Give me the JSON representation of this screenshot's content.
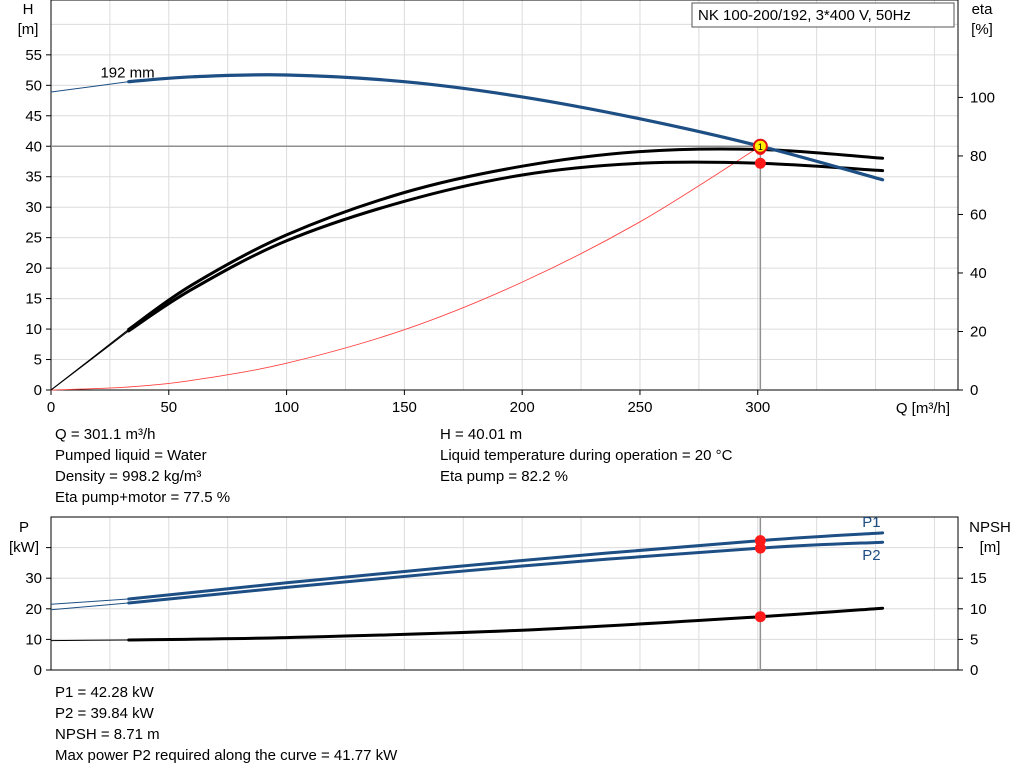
{
  "chart_data": [
    {
      "type": "line",
      "title": "NK 100-200/192, 3*400 V, 50Hz",
      "xlabel": "Q [m³/h]",
      "ylabel_left": "H",
      "ylabel_left_unit": "[m]",
      "ylabel_right": "eta",
      "ylabel_right_unit": "[%]",
      "xlim": [
        0,
        385
      ],
      "ylim": [
        0,
        64
      ],
      "ylim_right": [
        0,
        133.3
      ],
      "x_ticks": [
        "0",
        "50",
        "100",
        "150",
        "200",
        "250",
        "300"
      ],
      "y_ticks": [
        "0",
        "5",
        "10",
        "15",
        "20",
        "25",
        "30",
        "35",
        "40",
        "45",
        "50",
        "55"
      ],
      "y_right_ticks": [
        "0",
        "20",
        "40",
        "60",
        "80",
        "100"
      ],
      "curve_label": "192 mm",
      "grid": true,
      "series": [
        {
          "name": "H",
          "color": "#1d4f85",
          "x": [
            0,
            33,
            60,
            100,
            150,
            200,
            250,
            301.1,
            353
          ],
          "y": [
            48.9,
            50.6,
            51.4,
            51.7,
            50.6,
            48.1,
            44.5,
            40.01,
            34.5
          ]
        },
        {
          "name": "Eta pump",
          "color": "#000000",
          "axis": "right",
          "x": [
            0,
            33,
            60,
            100,
            150,
            200,
            250,
            301.1,
            353
          ],
          "y": [
            0,
            20.7,
            36.0,
            53.0,
            67.5,
            76.5,
            81.5,
            82.2,
            79.2
          ]
        },
        {
          "name": "Eta pump+motor",
          "color": "#000000",
          "axis": "right",
          "x": [
            0,
            33,
            60,
            100,
            150,
            200,
            250,
            301.1,
            353
          ],
          "y": [
            0,
            20.2,
            34.5,
            51.0,
            64.5,
            73.5,
            77.5,
            77.5,
            75.0
          ]
        },
        {
          "name": "System curve",
          "color": "#ff4444",
          "x": [
            0,
            33,
            60,
            100,
            150,
            200,
            250,
            301.1
          ],
          "y": [
            0,
            0.5,
            1.6,
            4.4,
            9.9,
            17.7,
            27.6,
            40.01
          ]
        }
      ],
      "duty_point": {
        "x": 301.1,
        "y": 40.01,
        "label": "1"
      },
      "duty_markers_right_axis": [
        82.2,
        77.5
      ]
    },
    {
      "type": "line",
      "xlim": [
        0,
        385
      ],
      "ylabel_left": "P",
      "ylabel_left_unit": "[kW]",
      "ylabel_right": "NPSH",
      "ylabel_right_unit": "[m]",
      "ylim": [
        0,
        50
      ],
      "ylim_right": [
        0,
        25
      ],
      "y_ticks": [
        "0",
        "10",
        "20",
        "30"
      ],
      "y_right_ticks": [
        "0",
        "5",
        "10",
        "15"
      ],
      "grid": true,
      "series": [
        {
          "name": "P1",
          "color": "#1d4f85",
          "x": [
            0,
            33,
            100,
            200,
            301.1,
            353
          ],
          "y": [
            21.5,
            23.2,
            28.5,
            35.8,
            42.28,
            44.8
          ]
        },
        {
          "name": "P2",
          "color": "#1d4f85",
          "x": [
            0,
            33,
            100,
            200,
            301.1,
            353
          ],
          "y": [
            19.7,
            21.9,
            27.0,
            34.0,
            39.84,
            41.77
          ]
        },
        {
          "name": "NPSH",
          "color": "#000000",
          "axis": "right",
          "x": [
            0,
            33,
            100,
            200,
            301.1,
            353
          ],
          "y": [
            4.8,
            4.9,
            5.3,
            6.5,
            8.71,
            10.1
          ]
        }
      ],
      "duty_x": 301.1
    }
  ],
  "info_top_left": [
    "Q = 301.1 m³/h",
    "Pumped liquid = Water",
    "Density = 998.2 kg/m³",
    "Eta pump+motor = 77.5 %"
  ],
  "info_top_right": [
    "H = 40.01 m",
    "Liquid temperature during operation = 20 °C",
    "Eta pump = 82.2 %"
  ],
  "info_bottom": [
    "P1 = 42.28 kW",
    "P2 = 39.84 kW",
    "NPSH = 8.71 m",
    "Max power P2 required along the curve = 41.77 kW"
  ]
}
